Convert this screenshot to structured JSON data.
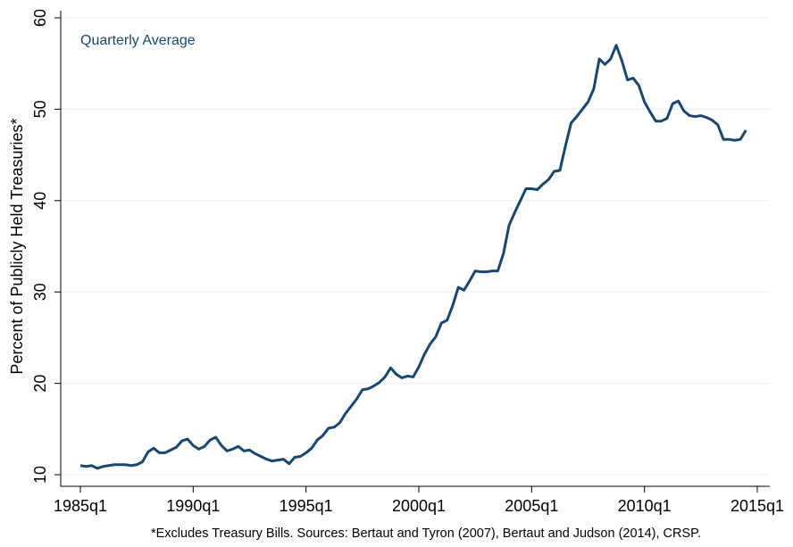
{
  "chart_data": {
    "type": "line",
    "annotation": "Quarterly Average",
    "y_label": "Percent of Publicly Held Treasuries*",
    "footnote": "*Excludes Treasury Bills. Sources: Bertaut and Tyron (2007), Bertaut and Judson (2014), CRSP.",
    "color": "#1a476f",
    "grid": true,
    "xlim": [
      1985,
      2015
    ],
    "ylim": [
      10,
      60
    ],
    "xticks": [
      {
        "value": 1985,
        "label": "1985q1"
      },
      {
        "value": 1990,
        "label": "1990q1"
      },
      {
        "value": 1995,
        "label": "1995q1"
      },
      {
        "value": 2000,
        "label": "2000q1"
      },
      {
        "value": 2005,
        "label": "2005q1"
      },
      {
        "value": 2010,
        "label": "2010q1"
      },
      {
        "value": 2015,
        "label": "2015q1"
      }
    ],
    "yticks": [
      10,
      20,
      30,
      40,
      50,
      60
    ],
    "x": [
      1985,
      1985.25,
      1985.5,
      1985.75,
      1986,
      1986.25,
      1986.5,
      1986.75,
      1987,
      1987.25,
      1987.5,
      1987.75,
      1988,
      1988.25,
      1988.5,
      1988.75,
      1989,
      1989.25,
      1989.5,
      1989.75,
      1990,
      1990.25,
      1990.5,
      1990.75,
      1991,
      1991.25,
      1991.5,
      1991.75,
      1992,
      1992.25,
      1992.5,
      1992.75,
      1993,
      1993.25,
      1993.5,
      1993.75,
      1994,
      1994.25,
      1994.5,
      1994.75,
      1995,
      1995.25,
      1995.5,
      1995.75,
      1996,
      1996.25,
      1996.5,
      1996.75,
      1997,
      1997.25,
      1997.5,
      1997.75,
      1998,
      1998.25,
      1998.5,
      1998.75,
      1999,
      1999.25,
      1999.5,
      1999.75,
      2000,
      2000.25,
      2000.5,
      2000.75,
      2001,
      2001.25,
      2001.5,
      2001.75,
      2002,
      2002.25,
      2002.5,
      2002.75,
      2003,
      2003.25,
      2003.5,
      2003.75,
      2004,
      2004.25,
      2004.5,
      2004.75,
      2005,
      2005.25,
      2005.5,
      2005.75,
      2006,
      2006.25,
      2006.5,
      2006.75,
      2007,
      2007.25,
      2007.5,
      2007.75,
      2008,
      2008.25,
      2008.5,
      2008.75,
      2009,
      2009.25,
      2009.5,
      2009.75,
      2010,
      2010.25,
      2010.5,
      2010.75,
      2011,
      2011.25,
      2011.5,
      2011.75,
      2012,
      2012.25,
      2012.5,
      2012.75,
      2013,
      2013.25,
      2013.5,
      2013.75,
      2014,
      2014.25,
      2014.5
    ],
    "values": [
      11.0,
      10.9,
      11.0,
      10.7,
      10.9,
      11.0,
      11.1,
      11.1,
      11.1,
      11.0,
      11.1,
      11.4,
      12.5,
      12.9,
      12.4,
      12.4,
      12.7,
      13.0,
      13.7,
      13.9,
      13.2,
      12.8,
      13.1,
      13.8,
      14.1,
      13.2,
      12.6,
      12.8,
      13.1,
      12.6,
      12.7,
      12.3,
      12.0,
      11.7,
      11.5,
      11.6,
      11.7,
      11.2,
      11.9,
      12.0,
      12.4,
      12.9,
      13.8,
      14.3,
      15.1,
      15.2,
      15.7,
      16.7,
      17.5,
      18.3,
      19.3,
      19.4,
      19.7,
      20.1,
      20.7,
      21.7,
      21.0,
      20.6,
      20.8,
      20.7,
      21.8,
      23.2,
      24.3,
      25.1,
      26.6,
      26.9,
      28.5,
      30.5,
      30.2,
      31.2,
      32.3,
      32.2,
      32.2,
      32.3,
      32.3,
      34.2,
      37.3,
      38.7,
      40.0,
      41.3,
      41.3,
      41.2,
      41.8,
      42.3,
      43.2,
      43.3,
      46.0,
      48.5,
      49.2,
      50.0,
      50.8,
      52.2,
      55.5,
      54.9,
      55.5,
      57.0,
      55.3,
      53.2,
      53.4,
      52.6,
      50.8,
      49.7,
      48.7,
      48.7,
      49.0,
      50.6,
      50.9,
      49.8,
      49.3,
      49.2,
      49.3,
      49.1,
      48.8,
      48.3,
      46.7,
      46.7,
      46.6,
      46.7,
      47.7
    ]
  }
}
